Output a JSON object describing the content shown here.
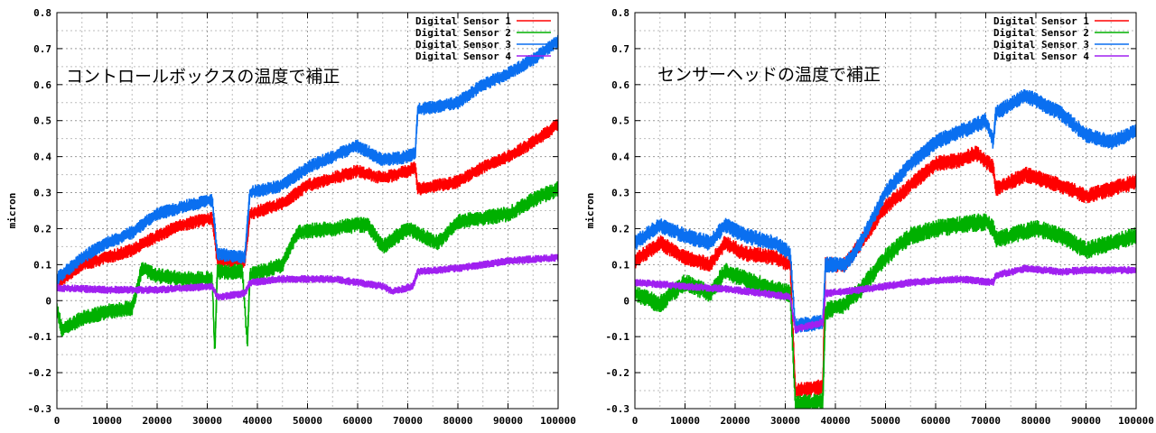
{
  "chart_data": [
    {
      "type": "line",
      "annotation": "コントロールボックスの温度で補正",
      "ylabel": "micron",
      "xlim": [
        0,
        100000
      ],
      "ylim": [
        -0.3,
        0.8
      ],
      "xticks": [
        "0",
        "10000",
        "20000",
        "30000",
        "40000",
        "50000",
        "60000",
        "70000",
        "80000",
        "90000",
        "100000"
      ],
      "yticks": [
        "-0.3",
        "-0.2",
        "-0.1",
        "0",
        "0.1",
        "0.2",
        "0.3",
        "0.4",
        "0.5",
        "0.6",
        "0.7",
        "0.8"
      ],
      "grid": true,
      "legend_position": "top-right",
      "series": [
        {
          "name": "Digital Sensor 1",
          "color": "#ff0000",
          "noise": 0.012,
          "points": [
            [
              0,
              0.05
            ],
            [
              5000,
              0.1
            ],
            [
              10000,
              0.12
            ],
            [
              15000,
              0.14
            ],
            [
              20000,
              0.18
            ],
            [
              25000,
              0.21
            ],
            [
              31000,
              0.23
            ],
            [
              32000,
              0.11
            ],
            [
              37500,
              0.11
            ],
            [
              38500,
              0.24
            ],
            [
              45000,
              0.27
            ],
            [
              50000,
              0.32
            ],
            [
              55000,
              0.34
            ],
            [
              60000,
              0.36
            ],
            [
              65000,
              0.34
            ],
            [
              70000,
              0.36
            ],
            [
              71500,
              0.37
            ],
            [
              72000,
              0.31
            ],
            [
              80000,
              0.33
            ],
            [
              85000,
              0.37
            ],
            [
              90000,
              0.4
            ],
            [
              95000,
              0.44
            ],
            [
              100000,
              0.49
            ]
          ]
        },
        {
          "name": "Digital Sensor 2",
          "color": "#00b000",
          "noise": 0.014,
          "points": [
            [
              0,
              -0.02
            ],
            [
              1000,
              -0.08
            ],
            [
              5000,
              -0.05
            ],
            [
              10000,
              -0.03
            ],
            [
              15000,
              -0.02
            ],
            [
              17000,
              0.09
            ],
            [
              20000,
              0.07
            ],
            [
              25000,
              0.06
            ],
            [
              31000,
              0.06
            ],
            [
              31500,
              -0.15
            ],
            [
              32000,
              0.08
            ],
            [
              37000,
              0.08
            ],
            [
              38000,
              -0.12
            ],
            [
              38500,
              0.07
            ],
            [
              45000,
              0.1
            ],
            [
              48000,
              0.19
            ],
            [
              55000,
              0.2
            ],
            [
              60000,
              0.21
            ],
            [
              62000,
              0.21
            ],
            [
              65000,
              0.15
            ],
            [
              70000,
              0.2
            ],
            [
              76000,
              0.16
            ],
            [
              80000,
              0.22
            ],
            [
              85000,
              0.23
            ],
            [
              90000,
              0.24
            ],
            [
              95000,
              0.28
            ],
            [
              100000,
              0.31
            ]
          ]
        },
        {
          "name": "Digital Sensor 3",
          "color": "#0a6ff0",
          "noise": 0.012,
          "points": [
            [
              0,
              0.06
            ],
            [
              5000,
              0.12
            ],
            [
              10000,
              0.16
            ],
            [
              15000,
              0.19
            ],
            [
              20000,
              0.24
            ],
            [
              25000,
              0.26
            ],
            [
              31000,
              0.28
            ],
            [
              32000,
              0.13
            ],
            [
              37500,
              0.12
            ],
            [
              38500,
              0.3
            ],
            [
              45000,
              0.32
            ],
            [
              50000,
              0.37
            ],
            [
              55000,
              0.4
            ],
            [
              60000,
              0.43
            ],
            [
              65000,
              0.39
            ],
            [
              70000,
              0.4
            ],
            [
              71500,
              0.41
            ],
            [
              72000,
              0.53
            ],
            [
              80000,
              0.55
            ],
            [
              85000,
              0.6
            ],
            [
              90000,
              0.63
            ],
            [
              95000,
              0.67
            ],
            [
              100000,
              0.72
            ]
          ]
        },
        {
          "name": "Digital Sensor 4",
          "color": "#a020f0",
          "noise": 0.007,
          "points": [
            [
              0,
              0.035
            ],
            [
              10000,
              0.03
            ],
            [
              20000,
              0.03
            ],
            [
              31000,
              0.04
            ],
            [
              32000,
              0.01
            ],
            [
              37500,
              0.02
            ],
            [
              38500,
              0.05
            ],
            [
              45000,
              0.06
            ],
            [
              55000,
              0.06
            ],
            [
              60000,
              0.05
            ],
            [
              65000,
              0.04
            ],
            [
              67000,
              0.025
            ],
            [
              71000,
              0.04
            ],
            [
              72000,
              0.08
            ],
            [
              80000,
              0.09
            ],
            [
              90000,
              0.11
            ],
            [
              100000,
              0.12
            ]
          ]
        }
      ]
    },
    {
      "type": "line",
      "annotation": "センサーヘッドの温度で補正",
      "ylabel": "micron",
      "xlim": [
        0,
        100000
      ],
      "ylim": [
        -0.3,
        0.8
      ],
      "xticks": [
        "0",
        "10000",
        "20000",
        "30000",
        "40000",
        "50000",
        "60000",
        "70000",
        "80000",
        "90000",
        "100000"
      ],
      "yticks": [
        "-0.3",
        "-0.2",
        "-0.1",
        "0",
        "0.1",
        "0.2",
        "0.3",
        "0.4",
        "0.5",
        "0.6",
        "0.7",
        "0.8"
      ],
      "grid": true,
      "legend_position": "top-right",
      "series": [
        {
          "name": "Digital Sensor 1",
          "color": "#ff0000",
          "noise": 0.014,
          "points": [
            [
              0,
              0.11
            ],
            [
              5000,
              0.16
            ],
            [
              10000,
              0.12
            ],
            [
              15000,
              0.1
            ],
            [
              18000,
              0.16
            ],
            [
              22000,
              0.13
            ],
            [
              28000,
              0.12
            ],
            [
              31000,
              0.1
            ],
            [
              32000,
              -0.25
            ],
            [
              37500,
              -0.24
            ],
            [
              38000,
              0.1
            ],
            [
              42000,
              0.1
            ],
            [
              45000,
              0.16
            ],
            [
              50000,
              0.26
            ],
            [
              55000,
              0.32
            ],
            [
              60000,
              0.38
            ],
            [
              65000,
              0.39
            ],
            [
              68000,
              0.41
            ],
            [
              71500,
              0.37
            ],
            [
              72000,
              0.31
            ],
            [
              78000,
              0.35
            ],
            [
              85000,
              0.32
            ],
            [
              90000,
              0.29
            ],
            [
              95000,
              0.31
            ],
            [
              100000,
              0.33
            ]
          ]
        },
        {
          "name": "Digital Sensor 2",
          "color": "#00b000",
          "noise": 0.016,
          "points": [
            [
              0,
              0.02
            ],
            [
              5000,
              -0.01
            ],
            [
              10000,
              0.05
            ],
            [
              15000,
              0.02
            ],
            [
              18000,
              0.08
            ],
            [
              22000,
              0.06
            ],
            [
              28000,
              0.03
            ],
            [
              31000,
              0.02
            ],
            [
              32000,
              -0.29
            ],
            [
              37500,
              -0.28
            ],
            [
              38000,
              -0.03
            ],
            [
              42000,
              -0.01
            ],
            [
              45000,
              0.03
            ],
            [
              50000,
              0.12
            ],
            [
              55000,
              0.18
            ],
            [
              60000,
              0.2
            ],
            [
              65000,
              0.21
            ],
            [
              70000,
              0.22
            ],
            [
              71500,
              0.2
            ],
            [
              72000,
              0.17
            ],
            [
              80000,
              0.2
            ],
            [
              85000,
              0.18
            ],
            [
              90000,
              0.14
            ],
            [
              95000,
              0.16
            ],
            [
              100000,
              0.18
            ]
          ]
        },
        {
          "name": "Digital Sensor 3",
          "color": "#0a6ff0",
          "noise": 0.014,
          "points": [
            [
              0,
              0.16
            ],
            [
              5000,
              0.21
            ],
            [
              10000,
              0.18
            ],
            [
              15000,
              0.16
            ],
            [
              18000,
              0.21
            ],
            [
              22000,
              0.18
            ],
            [
              28000,
              0.16
            ],
            [
              31000,
              0.13
            ],
            [
              32000,
              -0.07
            ],
            [
              37500,
              -0.06
            ],
            [
              38000,
              0.1
            ],
            [
              42000,
              0.1
            ],
            [
              45000,
              0.16
            ],
            [
              50000,
              0.3
            ],
            [
              55000,
              0.38
            ],
            [
              60000,
              0.44
            ],
            [
              65000,
              0.47
            ],
            [
              70000,
              0.5
            ],
            [
              71500,
              0.44
            ],
            [
              72000,
              0.52
            ],
            [
              78000,
              0.57
            ],
            [
              85000,
              0.52
            ],
            [
              90000,
              0.46
            ],
            [
              95000,
              0.44
            ],
            [
              100000,
              0.47
            ]
          ]
        },
        {
          "name": "Digital Sensor 4",
          "color": "#a020f0",
          "noise": 0.007,
          "points": [
            [
              0,
              0.05
            ],
            [
              10000,
              0.04
            ],
            [
              20000,
              0.03
            ],
            [
              31000,
              0.01
            ],
            [
              32000,
              -0.08
            ],
            [
              37500,
              -0.06
            ],
            [
              38000,
              0.02
            ],
            [
              45000,
              0.03
            ],
            [
              55000,
              0.05
            ],
            [
              65000,
              0.06
            ],
            [
              71500,
              0.05
            ],
            [
              72000,
              0.07
            ],
            [
              78000,
              0.09
            ],
            [
              85000,
              0.08
            ],
            [
              90000,
              0.085
            ],
            [
              100000,
              0.085
            ]
          ]
        }
      ]
    }
  ]
}
